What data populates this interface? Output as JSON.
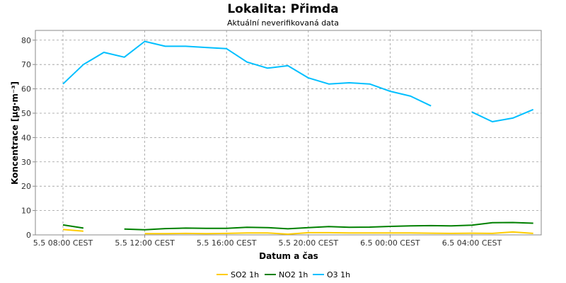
{
  "chart_data": {
    "type": "line",
    "title": "Lokalita: Přimda",
    "subtitle": "Aktuální neverifikovaná data",
    "xlabel": "Datum a čas",
    "ylabel": "Koncentrace [µg·m⁻³]",
    "ylim": [
      0,
      84
    ],
    "yticks": [
      0,
      10,
      20,
      30,
      40,
      50,
      60,
      70,
      80
    ],
    "x_hours_label_values": [
      0,
      4,
      8,
      12,
      16,
      20
    ],
    "xticks": [
      "5.5 08:00 CEST",
      "5.5 12:00 CEST",
      "5.5 16:00 CEST",
      "5.5 20:00 CEST",
      "6.5 00:00 CEST",
      "6.5 04:00 CEST"
    ],
    "x": [
      "5.5 08:00",
      "5.5 09:00",
      "5.5 10:00",
      "5.5 11:00",
      "5.5 12:00",
      "5.5 13:00",
      "5.5 14:00",
      "5.5 15:00",
      "5.5 16:00",
      "5.5 17:00",
      "5.5 18:00",
      "5.5 19:00",
      "5.5 20:00",
      "5.5 21:00",
      "5.5 22:00",
      "5.5 23:00",
      "6.5 00:00",
      "6.5 01:00",
      "6.5 02:00",
      "6.5 03:00",
      "6.5 04:00",
      "6.5 05:00",
      "6.5 06:00",
      "6.5 07:00"
    ],
    "grid": true,
    "legend_position": "bottom-center",
    "series": [
      {
        "name": "SO2 1h",
        "color": "#ffcc00",
        "values": [
          2.2,
          1.5,
          null,
          null,
          0.5,
          0.5,
          0.6,
          0.5,
          0.6,
          0.8,
          0.8,
          0.3,
          0.9,
          0.9,
          0.8,
          0.8,
          0.8,
          0.8,
          0.7,
          0.6,
          0.7,
          0.6,
          1.2,
          0.6
        ]
      },
      {
        "name": "NO2 1h",
        "color": "#008000",
        "values": [
          4.1,
          2.8,
          null,
          2.4,
          2.1,
          2.6,
          2.8,
          2.7,
          2.7,
          3.1,
          3.0,
          2.5,
          3.0,
          3.4,
          3.1,
          3.2,
          3.5,
          3.7,
          3.8,
          3.7,
          4.0,
          5.0,
          5.1,
          4.8
        ]
      },
      {
        "name": "O3 1h",
        "color": "#00bfff",
        "values": [
          62,
          70,
          75,
          73,
          79.5,
          77.5,
          77.5,
          77,
          76.5,
          71,
          68.5,
          69.5,
          64.5,
          62,
          62.5,
          62,
          59,
          57,
          53,
          null,
          50.5,
          46.5,
          48,
          51.5
        ]
      }
    ]
  }
}
